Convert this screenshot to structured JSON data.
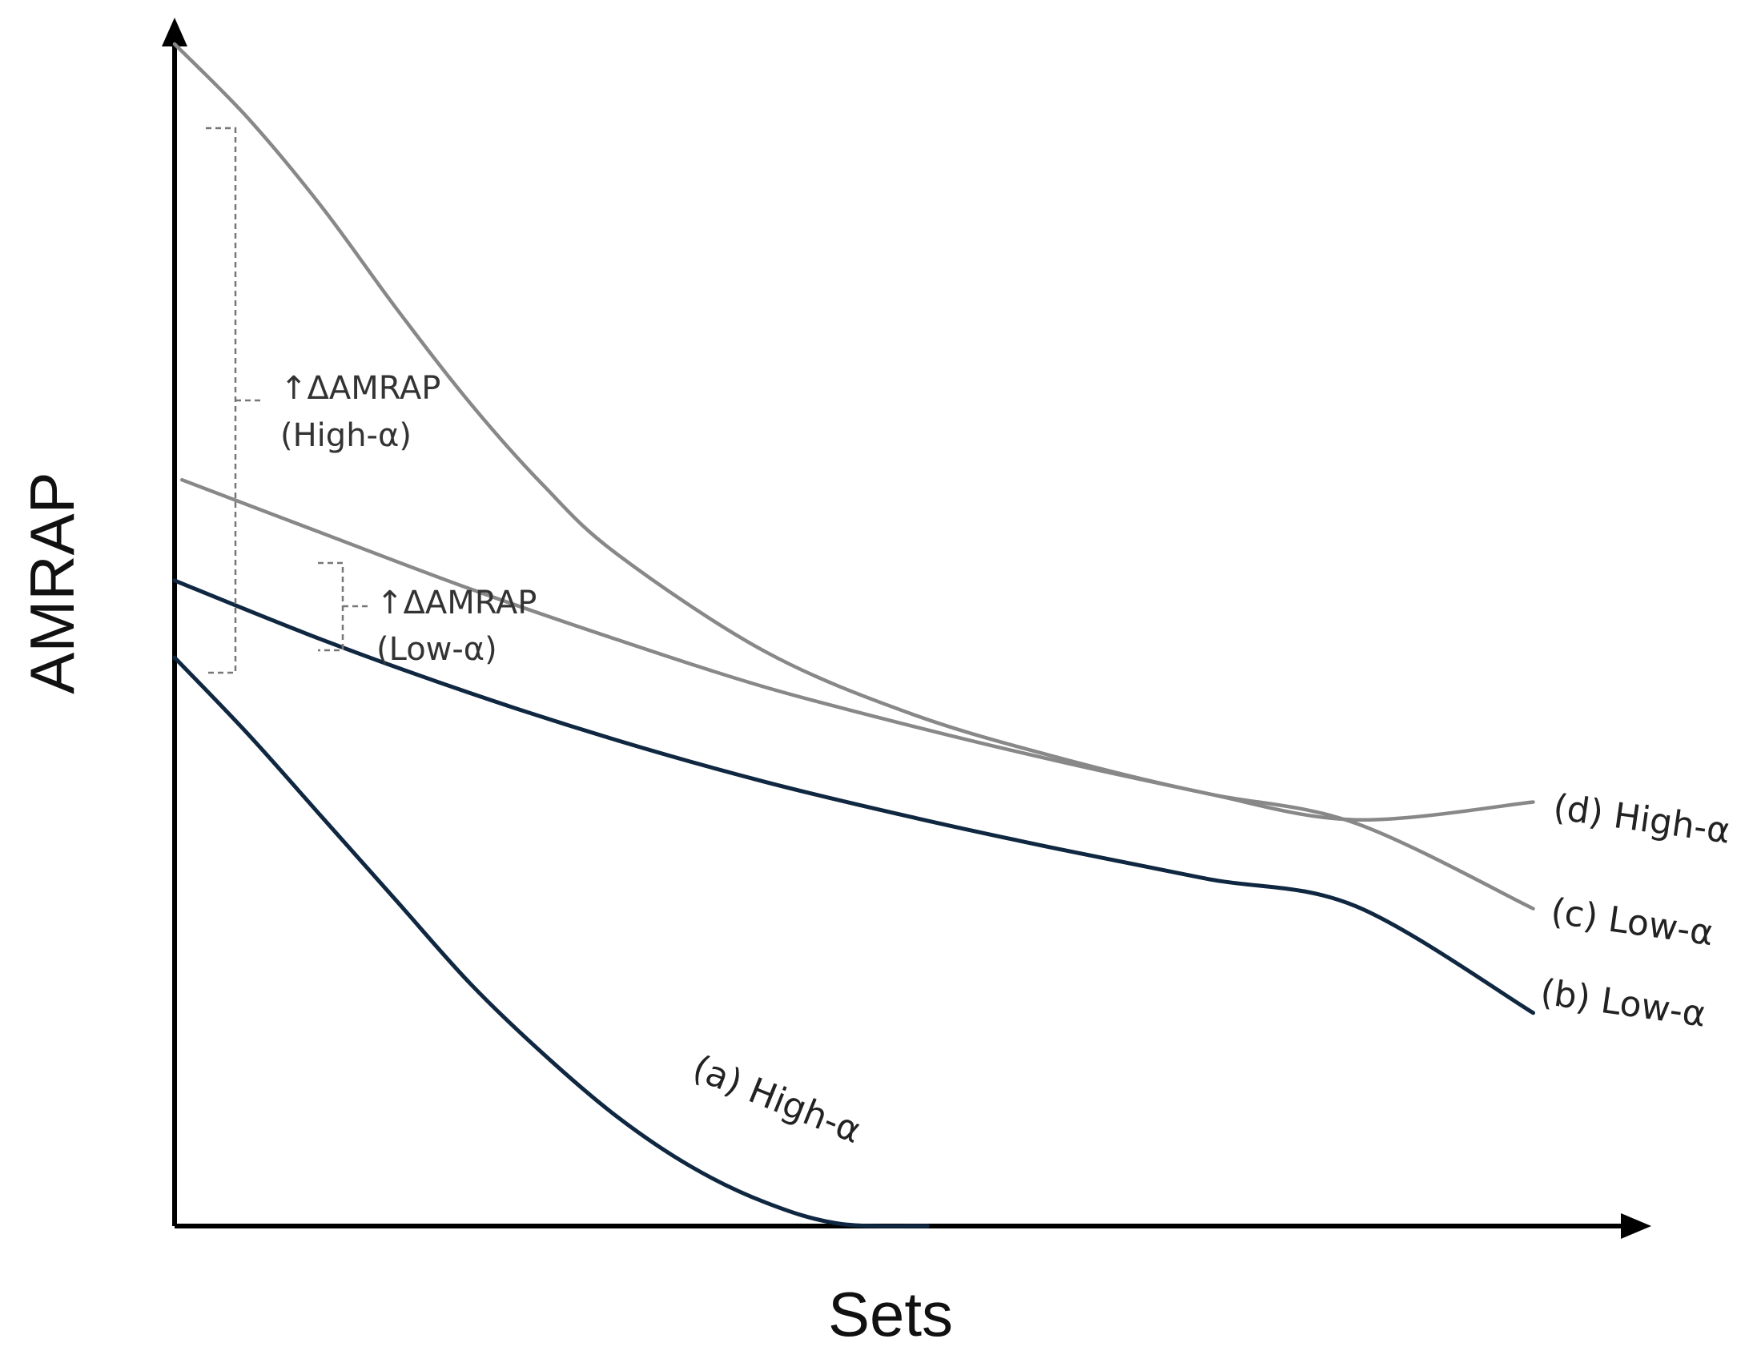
{
  "chart_data": {
    "type": "line",
    "title": "",
    "xlabel": "Sets",
    "ylabel": "AMRAP",
    "xlim": [
      0,
      1
    ],
    "ylim": [
      0,
      1
    ],
    "grid": false,
    "ticks": false,
    "series": [
      {
        "name": "(a) High-α",
        "color": "#0f2740",
        "points": [
          [
            0.0,
            0.48
          ],
          [
            0.05,
            0.415
          ],
          [
            0.1,
            0.345
          ],
          [
            0.15,
            0.275
          ],
          [
            0.2,
            0.205
          ],
          [
            0.25,
            0.145
          ],
          [
            0.3,
            0.092
          ],
          [
            0.35,
            0.05
          ],
          [
            0.4,
            0.02
          ],
          [
            0.45,
            0.002
          ],
          [
            0.51,
            0.0
          ]
        ]
      },
      {
        "name": "(b) Low-α",
        "color": "#0f2740",
        "points": [
          [
            0.0,
            0.545
          ],
          [
            0.1,
            0.495
          ],
          [
            0.2,
            0.45
          ],
          [
            0.3,
            0.41
          ],
          [
            0.4,
            0.375
          ],
          [
            0.5,
            0.345
          ],
          [
            0.6,
            0.318
          ],
          [
            0.7,
            0.293
          ],
          [
            0.8,
            0.27
          ],
          [
            0.92,
            0.18
          ]
        ]
      },
      {
        "name": "(c) Low-α",
        "color": "#888888",
        "points": [
          [
            0.005,
            0.63
          ],
          [
            0.1,
            0.585
          ],
          [
            0.2,
            0.538
          ],
          [
            0.3,
            0.495
          ],
          [
            0.4,
            0.455
          ],
          [
            0.5,
            0.422
          ],
          [
            0.6,
            0.392
          ],
          [
            0.7,
            0.365
          ],
          [
            0.8,
            0.34
          ],
          [
            0.92,
            0.268
          ]
        ]
      },
      {
        "name": "(d) High-α",
        "color": "#888888",
        "points": [
          [
            0.0,
            0.998
          ],
          [
            0.05,
            0.935
          ],
          [
            0.1,
            0.86
          ],
          [
            0.15,
            0.775
          ],
          [
            0.2,
            0.695
          ],
          [
            0.25,
            0.625
          ],
          [
            0.3,
            0.567
          ],
          [
            0.4,
            0.485
          ],
          [
            0.5,
            0.432
          ],
          [
            0.6,
            0.395
          ],
          [
            0.7,
            0.365
          ],
          [
            0.8,
            0.343
          ],
          [
            0.92,
            0.358
          ]
        ]
      }
    ],
    "annotations": [
      {
        "line1": "↑ΔAMRAP",
        "line2": "(High-α)"
      },
      {
        "line1": "↑ΔAMRAP",
        "line2": "(Low-α)"
      }
    ]
  }
}
